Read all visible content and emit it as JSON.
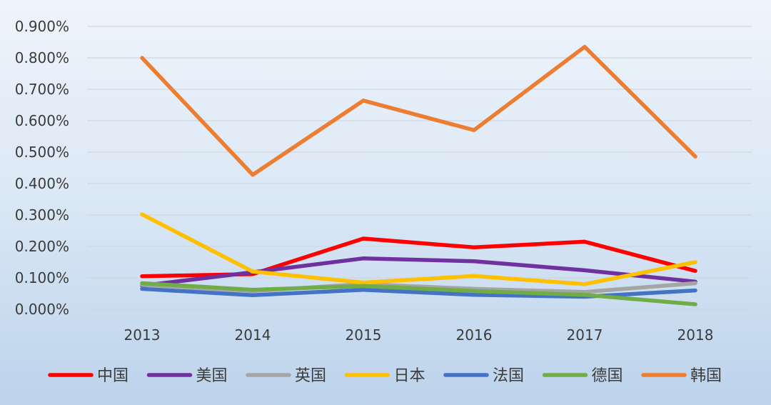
{
  "chart_data": {
    "type": "line",
    "categories": [
      "2013",
      "2014",
      "2015",
      "2016",
      "2017",
      "2018"
    ],
    "y_ticks": [
      "0.000%",
      "0.100%",
      "0.200%",
      "0.300%",
      "0.400%",
      "0.500%",
      "0.600%",
      "0.700%",
      "0.800%",
      "0.900%"
    ],
    "ylim": [
      0,
      0.9
    ],
    "y_unit": "%",
    "grid": true,
    "legend_position": "bottom",
    "series": [
      {
        "name": "中国",
        "color": "#ff0000",
        "values": [
          0.105,
          0.112,
          0.225,
          0.197,
          0.215,
          0.122
        ]
      },
      {
        "name": "美国",
        "color": "#7030a0",
        "values": [
          0.075,
          0.118,
          0.162,
          0.153,
          0.124,
          0.088
        ]
      },
      {
        "name": "英国",
        "color": "#a5a5a5",
        "values": [
          0.078,
          0.058,
          0.08,
          0.065,
          0.055,
          0.083
        ]
      },
      {
        "name": "日本",
        "color": "#ffc000",
        "values": [
          0.302,
          0.12,
          0.085,
          0.106,
          0.08,
          0.15
        ]
      },
      {
        "name": "法国",
        "color": "#4472c4",
        "values": [
          0.065,
          0.045,
          0.062,
          0.046,
          0.04,
          0.06
        ]
      },
      {
        "name": "德国",
        "color": "#70ad47",
        "values": [
          0.083,
          0.062,
          0.074,
          0.058,
          0.046,
          0.016
        ]
      },
      {
        "name": "韩国",
        "color": "#ed7d31",
        "values": [
          0.8,
          0.428,
          0.664,
          0.57,
          0.835,
          0.486
        ]
      }
    ]
  }
}
